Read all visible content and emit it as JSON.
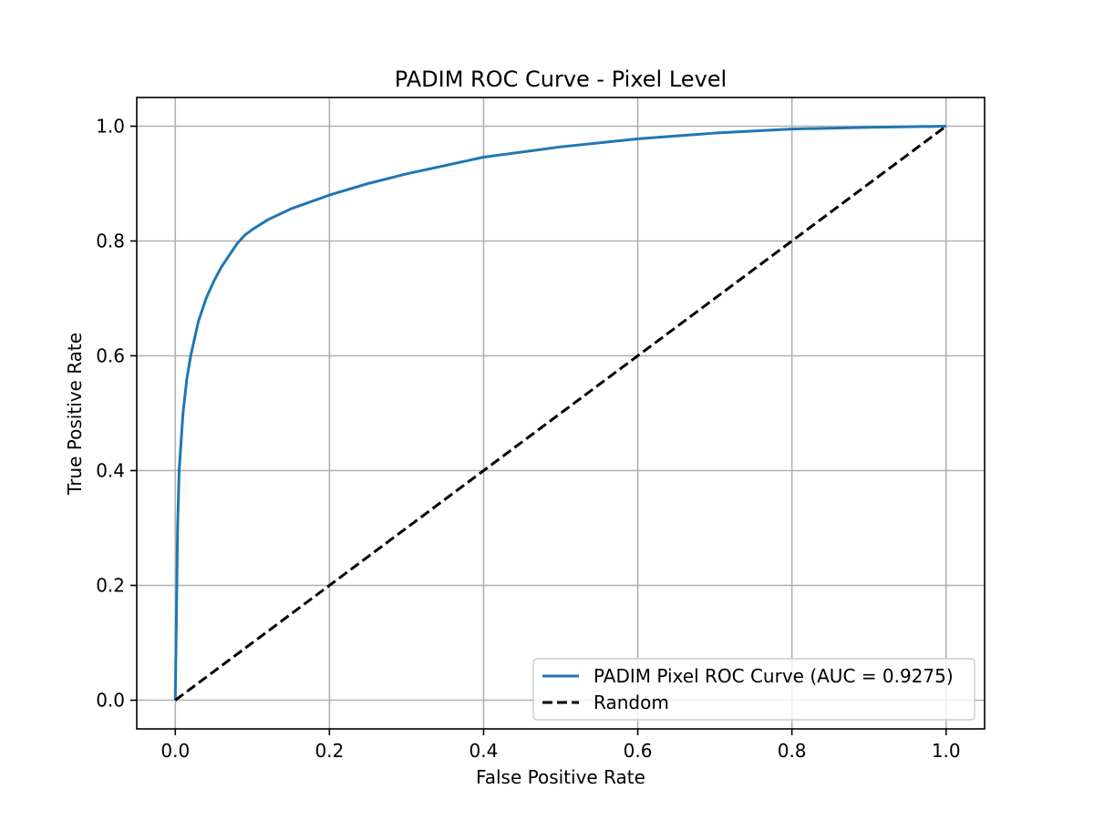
{
  "chart_data": {
    "type": "line",
    "title": "PADIM ROC Curve - Pixel Level",
    "xlabel": "False Positive Rate",
    "ylabel": "True Positive Rate",
    "xlim": [
      -0.05,
      1.05
    ],
    "ylim": [
      -0.05,
      1.05
    ],
    "xticks": [
      0.0,
      0.2,
      0.4,
      0.6,
      0.8,
      1.0
    ],
    "yticks": [
      0.0,
      0.2,
      0.4,
      0.6,
      0.8,
      1.0
    ],
    "xtick_labels": [
      "0.0",
      "0.2",
      "0.4",
      "0.6",
      "0.8",
      "1.0"
    ],
    "ytick_labels": [
      "0.0",
      "0.2",
      "0.4",
      "0.6",
      "0.8",
      "1.0"
    ],
    "grid": true,
    "legend_position": "lower-right",
    "series": [
      {
        "name": "PADIM Pixel ROC Curve (AUC = 0.9275)",
        "color": "#1f77b4",
        "style": "solid",
        "x": [
          0.0,
          0.001,
          0.002,
          0.003,
          0.005,
          0.008,
          0.01,
          0.015,
          0.02,
          0.03,
          0.04,
          0.05,
          0.06,
          0.07,
          0.08,
          0.09,
          0.1,
          0.12,
          0.15,
          0.2,
          0.25,
          0.3,
          0.4,
          0.5,
          0.6,
          0.7,
          0.8,
          0.9,
          0.95,
          1.0
        ],
        "y": [
          0.0,
          0.1,
          0.2,
          0.3,
          0.4,
          0.46,
          0.5,
          0.56,
          0.6,
          0.66,
          0.7,
          0.73,
          0.755,
          0.775,
          0.795,
          0.81,
          0.82,
          0.837,
          0.856,
          0.88,
          0.9,
          0.917,
          0.946,
          0.964,
          0.978,
          0.988,
          0.995,
          0.998,
          0.999,
          1.0
        ]
      },
      {
        "name": "Random",
        "color": "#000000",
        "style": "dashed",
        "x": [
          0.0,
          1.0
        ],
        "y": [
          0.0,
          1.0
        ]
      }
    ]
  }
}
